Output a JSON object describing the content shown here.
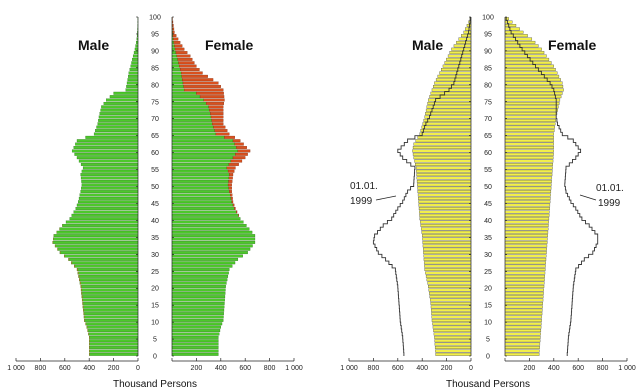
{
  "chart_data": [
    {
      "type": "bar",
      "subtype": "population-pyramid",
      "labels": {
        "left": "Male",
        "right": "Female"
      },
      "xlabel": "Thousand Persons",
      "x_ticks": [
        "1 000",
        "800",
        "600",
        "400",
        "200",
        "0",
        "200",
        "400",
        "600",
        "800",
        "1 000"
      ],
      "xlim": [
        0,
        1000
      ],
      "y_ticks": [
        0,
        5,
        10,
        15,
        20,
        25,
        30,
        35,
        40,
        45,
        50,
        55,
        60,
        65,
        70,
        75,
        80,
        85,
        90,
        95,
        100
      ],
      "ylim": [
        0,
        100
      ],
      "age_step": 1,
      "colors": {
        "male": "#4dc82b",
        "female": "#4dc82b",
        "female_surplus": "#d9501e",
        "male_surplus": "#d9501e"
      },
      "male_anchors": [
        [
          0,
          400
        ],
        [
          5,
          400
        ],
        [
          8,
          420
        ],
        [
          10,
          440
        ],
        [
          15,
          455
        ],
        [
          20,
          470
        ],
        [
          25,
          500
        ],
        [
          28,
          570
        ],
        [
          30,
          640
        ],
        [
          33,
          700
        ],
        [
          35,
          690
        ],
        [
          38,
          620
        ],
        [
          40,
          560
        ],
        [
          43,
          510
        ],
        [
          45,
          490
        ],
        [
          48,
          470
        ],
        [
          50,
          460
        ],
        [
          53,
          470
        ],
        [
          55,
          450
        ],
        [
          58,
          500
        ],
        [
          60,
          540
        ],
        [
          63,
          500
        ],
        [
          65,
          360
        ],
        [
          68,
          330
        ],
        [
          70,
          320
        ],
        [
          73,
          300
        ],
        [
          75,
          260
        ],
        [
          77,
          200
        ],
        [
          78,
          100
        ],
        [
          80,
          90
        ],
        [
          83,
          75
        ],
        [
          85,
          60
        ],
        [
          88,
          40
        ],
        [
          90,
          25
        ],
        [
          93,
          10
        ],
        [
          95,
          5
        ],
        [
          100,
          0
        ]
      ],
      "female_anchors": [
        [
          0,
          380
        ],
        [
          5,
          380
        ],
        [
          8,
          400
        ],
        [
          10,
          420
        ],
        [
          15,
          430
        ],
        [
          20,
          440
        ],
        [
          25,
          470
        ],
        [
          28,
          540
        ],
        [
          30,
          620
        ],
        [
          33,
          680
        ],
        [
          35,
          680
        ],
        [
          38,
          610
        ],
        [
          40,
          560
        ],
        [
          43,
          520
        ],
        [
          45,
          500
        ],
        [
          48,
          490
        ],
        [
          50,
          490
        ],
        [
          53,
          500
        ],
        [
          55,
          520
        ],
        [
          58,
          600
        ],
        [
          60,
          640
        ],
        [
          63,
          560
        ],
        [
          65,
          470
        ],
        [
          68,
          420
        ],
        [
          70,
          420
        ],
        [
          73,
          420
        ],
        [
          75,
          430
        ],
        [
          78,
          420
        ],
        [
          80,
          380
        ],
        [
          83,
          250
        ],
        [
          85,
          200
        ],
        [
          88,
          150
        ],
        [
          90,
          100
        ],
        [
          93,
          50
        ],
        [
          95,
          20
        ],
        [
          100,
          0
        ]
      ]
    },
    {
      "type": "bar",
      "subtype": "population-pyramid",
      "labels": {
        "left": "Male",
        "right": "Female"
      },
      "xlabel": "Thousand Persons",
      "x_ticks": [
        "1 000",
        "800",
        "600",
        "400",
        "200",
        "0",
        "200",
        "400",
        "600",
        "800",
        "1 000"
      ],
      "xlim": [
        0,
        1000
      ],
      "y_ticks": [
        0,
        5,
        10,
        15,
        20,
        25,
        30,
        35,
        40,
        45,
        50,
        55,
        60,
        65,
        70,
        75,
        80,
        85,
        90,
        95,
        100
      ],
      "ylim": [
        0,
        100
      ],
      "age_step": 1,
      "colors": {
        "bars": "#f2ef4a",
        "outline": "#444444",
        "comparison": "#333333"
      },
      "annotation": {
        "left": [
          "01.01.",
          "1999"
        ],
        "right": [
          "01.01.",
          "1999"
        ]
      },
      "male_anchors": [
        [
          0,
          290
        ],
        [
          5,
          300
        ],
        [
          10,
          320
        ],
        [
          15,
          330
        ],
        [
          20,
          350
        ],
        [
          25,
          380
        ],
        [
          30,
          390
        ],
        [
          35,
          400
        ],
        [
          40,
          420
        ],
        [
          45,
          430
        ],
        [
          50,
          440
        ],
        [
          55,
          450
        ],
        [
          58,
          470
        ],
        [
          60,
          480
        ],
        [
          62,
          470
        ],
        [
          65,
          420
        ],
        [
          70,
          380
        ],
        [
          75,
          350
        ],
        [
          80,
          300
        ],
        [
          85,
          230
        ],
        [
          90,
          160
        ],
        [
          93,
          100
        ],
        [
          95,
          60
        ],
        [
          98,
          20
        ],
        [
          100,
          0
        ]
      ],
      "female_anchors": [
        [
          0,
          280
        ],
        [
          5,
          290
        ],
        [
          10,
          300
        ],
        [
          15,
          310
        ],
        [
          20,
          320
        ],
        [
          25,
          330
        ],
        [
          30,
          340
        ],
        [
          35,
          350
        ],
        [
          40,
          360
        ],
        [
          45,
          370
        ],
        [
          50,
          380
        ],
        [
          55,
          390
        ],
        [
          60,
          400
        ],
        [
          65,
          400
        ],
        [
          70,
          420
        ],
        [
          75,
          450
        ],
        [
          78,
          480
        ],
        [
          80,
          470
        ],
        [
          85,
          400
        ],
        [
          90,
          300
        ],
        [
          93,
          220
        ],
        [
          95,
          150
        ],
        [
          98,
          60
        ],
        [
          100,
          0
        ]
      ],
      "comparison_male_anchors": [
        [
          0,
          550
        ],
        [
          5,
          560
        ],
        [
          10,
          580
        ],
        [
          15,
          590
        ],
        [
          20,
          600
        ],
        [
          25,
          620
        ],
        [
          28,
          700
        ],
        [
          30,
          760
        ],
        [
          33,
          800
        ],
        [
          35,
          790
        ],
        [
          38,
          720
        ],
        [
          40,
          650
        ],
        [
          43,
          600
        ],
        [
          45,
          560
        ],
        [
          48,
          520
        ],
        [
          50,
          470
        ],
        [
          55,
          460
        ],
        [
          58,
          560
        ],
        [
          60,
          600
        ],
        [
          63,
          520
        ],
        [
          65,
          400
        ],
        [
          68,
          370
        ],
        [
          70,
          340
        ],
        [
          75,
          290
        ],
        [
          78,
          180
        ],
        [
          80,
          140
        ],
        [
          85,
          100
        ],
        [
          90,
          60
        ],
        [
          95,
          20
        ],
        [
          100,
          0
        ]
      ],
      "comparison_female_anchors": [
        [
          0,
          510
        ],
        [
          5,
          520
        ],
        [
          10,
          540
        ],
        [
          15,
          550
        ],
        [
          20,
          560
        ],
        [
          25,
          580
        ],
        [
          28,
          650
        ],
        [
          30,
          720
        ],
        [
          33,
          760
        ],
        [
          35,
          760
        ],
        [
          38,
          690
        ],
        [
          40,
          630
        ],
        [
          43,
          580
        ],
        [
          45,
          540
        ],
        [
          48,
          500
        ],
        [
          50,
          490
        ],
        [
          55,
          500
        ],
        [
          58,
          580
        ],
        [
          60,
          620
        ],
        [
          63,
          560
        ],
        [
          65,
          470
        ],
        [
          68,
          430
        ],
        [
          70,
          420
        ],
        [
          75,
          420
        ],
        [
          78,
          400
        ],
        [
          80,
          370
        ],
        [
          85,
          250
        ],
        [
          90,
          140
        ],
        [
          95,
          50
        ],
        [
          100,
          0
        ]
      ]
    }
  ]
}
